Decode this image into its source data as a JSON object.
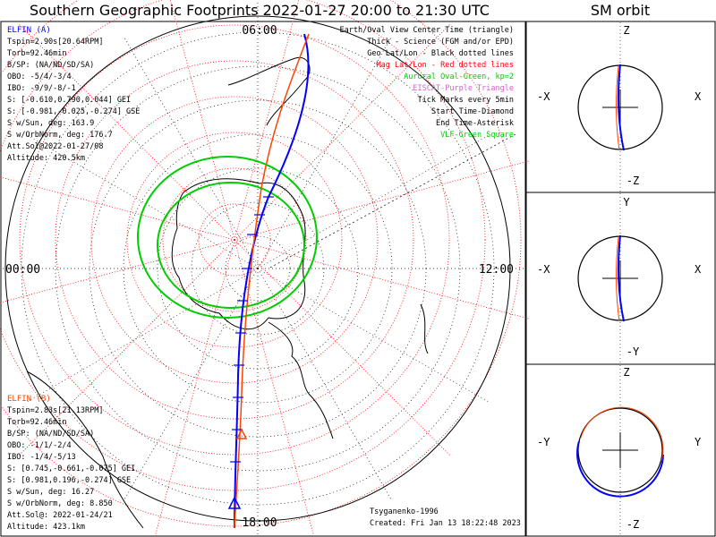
{
  "header": {
    "title": "Southern Geographic Footprints 2022-01-27 20:00 to 21:30 UTC",
    "orbit_title": "SM orbit"
  },
  "map": {
    "time_labels": {
      "top": "06:00",
      "left": "00:00",
      "right": "12:00",
      "bottom": "18:00"
    },
    "legend": [
      {
        "text": "Earth/Oval View Center Time (triangle)",
        "color": "#000000"
      },
      {
        "text": "Thick - Science (FGM and/or EPD)",
        "color": "#000000"
      },
      {
        "text": "Geo Lat/Lon - Black dotted lines",
        "color": "#000000"
      },
      {
        "text": "Mag Lat/Lon - Red dotted lines",
        "color": "#ff0000"
      },
      {
        "text": "Auroral Oval-Green, kp=2",
        "color": "#00cc00"
      },
      {
        "text": "EISCAT-Purple Triangle",
        "color": "#cc66cc"
      },
      {
        "text": "Tick Marks every 5min",
        "color": "#000000"
      },
      {
        "text": "Start Time-Diamond",
        "color": "#000000"
      },
      {
        "text": "End Time-Asterisk",
        "color": "#000000"
      },
      {
        "text": "VLF-Green Square",
        "color": "#00cc00"
      }
    ],
    "elfin_a": {
      "name": "ELFIN (A)",
      "color": "#0000ff",
      "lines": [
        "Tspin=2.90s[20.64RPM]",
        "Torb=92.46min",
        "B/SP: (NA/ND/SD/SA)",
        "OBO: -5/4/-3/4",
        "IBO: -9/9/-8/-1",
        "S: [-0.610,0.790,0.044] GEI",
        "S: [-0.981,-0.025,-0.274] GSE",
        "S w/Sun, deg: 163.9",
        "S w/OrbNorm, deg: 176.7",
        "Att.Sol@2022-01-27/08",
        "Altitude: 420.5km"
      ]
    },
    "elfin_b": {
      "name": "ELFIN (B)",
      "color": "#ff4400",
      "lines": [
        "Tspin=2.83s[21.13RPM]",
        "Torb=92.46min",
        "B/SP: (NA/ND/SD/SA)",
        "OBO: -1/1/-2/4",
        "IBO: -1/4/-5/13",
        "S: [0.745,-0.661,-0.075] GEI",
        "S: [0.981,0.196,-0.274] GSE",
        "S w/Sun, deg: 16.27",
        "S w/OrbNorm, deg: 8.850",
        "Att.Sol@: 2022-01-24/21",
        "Altitude: 423.1km"
      ]
    },
    "footer": {
      "model": "Tsyganenko-1996",
      "created": "Created: Fri Jan 13 18:22:48 2023"
    }
  },
  "orbit_panels": [
    {
      "top": "Z",
      "bottom": "-Z",
      "left": "-X",
      "right": "X"
    },
    {
      "top": "Y",
      "bottom": "-Y",
      "left": "-X",
      "right": "X"
    },
    {
      "top": "Z",
      "bottom": "-Z",
      "left": "-Y",
      "right": "Y"
    }
  ],
  "colors": {
    "elfin_a": "#0000ff",
    "elfin_b": "#ff4400",
    "auroral_oval": "#00cc00",
    "mag_grid": "#ff0000",
    "geo_grid": "#000000"
  }
}
